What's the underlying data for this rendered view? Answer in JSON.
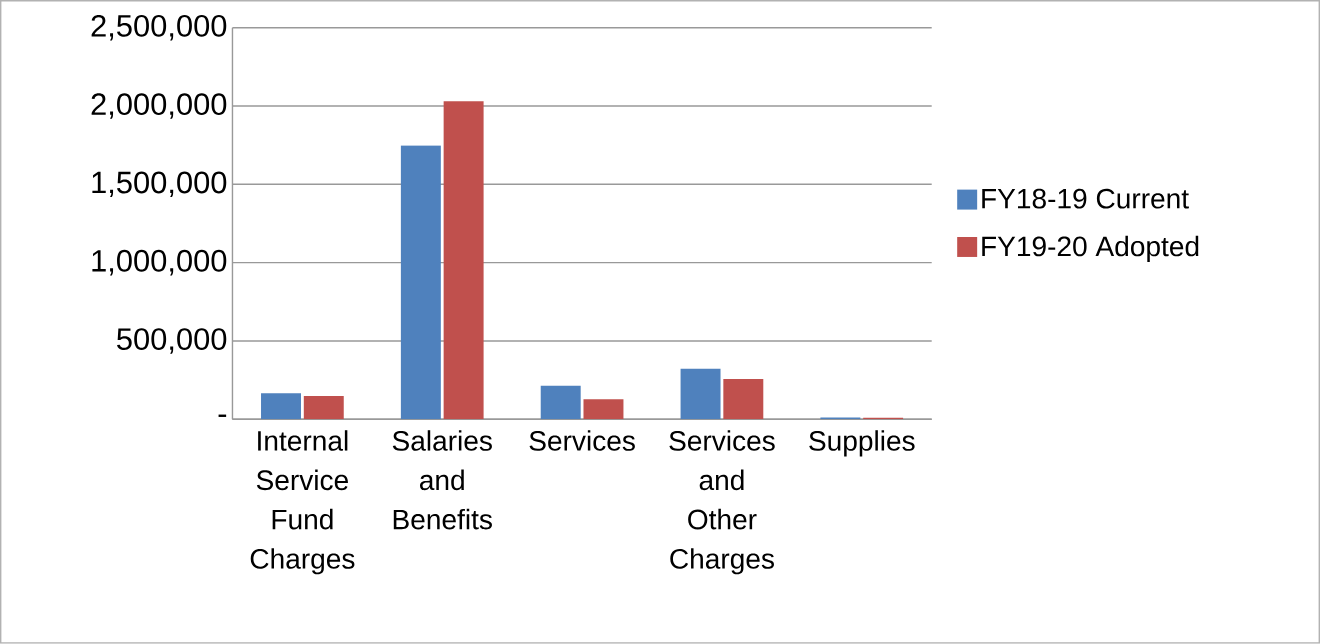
{
  "chart_data": {
    "type": "bar",
    "categories": [
      "Internal Service Fund Charges",
      "Salaries and Benefits",
      "Services",
      "Services and Other Charges",
      "Supplies"
    ],
    "series": [
      {
        "name": "FY18-19 Current",
        "color": "#4f81bd",
        "values": [
          166000,
          1748000,
          214000,
          323000,
          11000
        ]
      },
      {
        "name": "FY19-20 Adopted",
        "color": "#c0504d",
        "values": [
          148000,
          2030000,
          127000,
          257000,
          9000
        ]
      }
    ],
    "ylim": [
      0,
      2500000
    ],
    "yticks": [
      {
        "value": 0,
        "label": "-"
      },
      {
        "value": 500000,
        "label": "500,000"
      },
      {
        "value": 1000000,
        "label": "1,000,000"
      },
      {
        "value": 1500000,
        "label": "1,500,000"
      },
      {
        "value": 2000000,
        "label": "2,000,000"
      },
      {
        "value": 2500000,
        "label": "2,500,000"
      }
    ],
    "grid": "y",
    "legend": "right"
  }
}
